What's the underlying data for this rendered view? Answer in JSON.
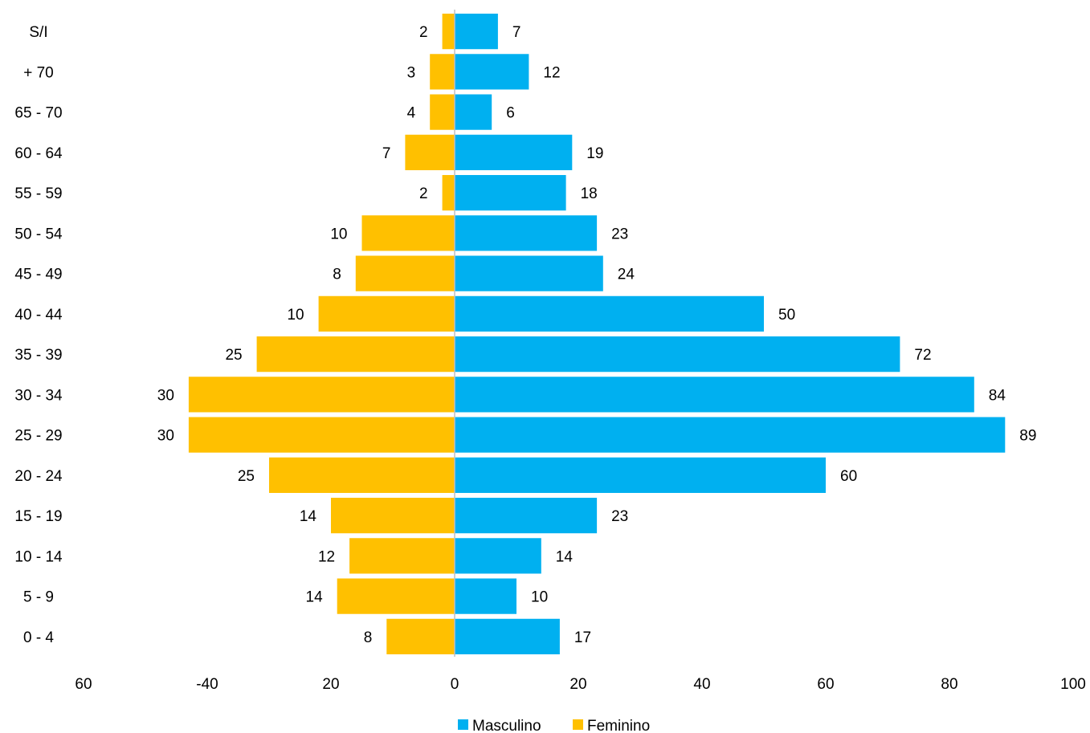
{
  "chart_data": {
    "type": "bar",
    "orientation": "horizontal",
    "layout": "population-pyramid",
    "categories": [
      "0 - 4",
      "5 - 9",
      "10 - 14",
      "15 - 19",
      "20 - 24",
      "25 - 29",
      "30 - 34",
      "35 - 39",
      "40 - 44",
      "45 - 49",
      "50 - 54",
      "55 - 59",
      "60 - 64",
      "65 - 70",
      "+ 70",
      "S/I"
    ],
    "series": [
      {
        "name": "Masculino",
        "color": "#00B0F0",
        "side": "right",
        "values": [
          17,
          10,
          14,
          23,
          60,
          89,
          84,
          72,
          50,
          24,
          23,
          18,
          19,
          6,
          12,
          7
        ]
      },
      {
        "name": "Feminino",
        "color": "#FFC000",
        "side": "left",
        "values": [
          8,
          14,
          12,
          14,
          25,
          30,
          30,
          25,
          10,
          8,
          10,
          2,
          7,
          4,
          3,
          2
        ]
      }
    ],
    "bar_extent_left": [
      11,
      19,
      17,
      20,
      30,
      43,
      43,
      32,
      22,
      16,
      15,
      2,
      8,
      4,
      4,
      2
    ],
    "xlim": [
      -60,
      100
    ],
    "xticks": [
      -60,
      -40,
      -20,
      0,
      20,
      40,
      60,
      80,
      100
    ],
    "xtick_labels": [
      "60",
      "-40",
      "20",
      "0",
      "20",
      "40",
      "60",
      "80",
      "100"
    ],
    "title": "",
    "xlabel": "",
    "ylabel": "",
    "grid": false,
    "legend": {
      "position": "bottom",
      "entries": [
        "Masculino",
        "Feminino"
      ]
    }
  }
}
